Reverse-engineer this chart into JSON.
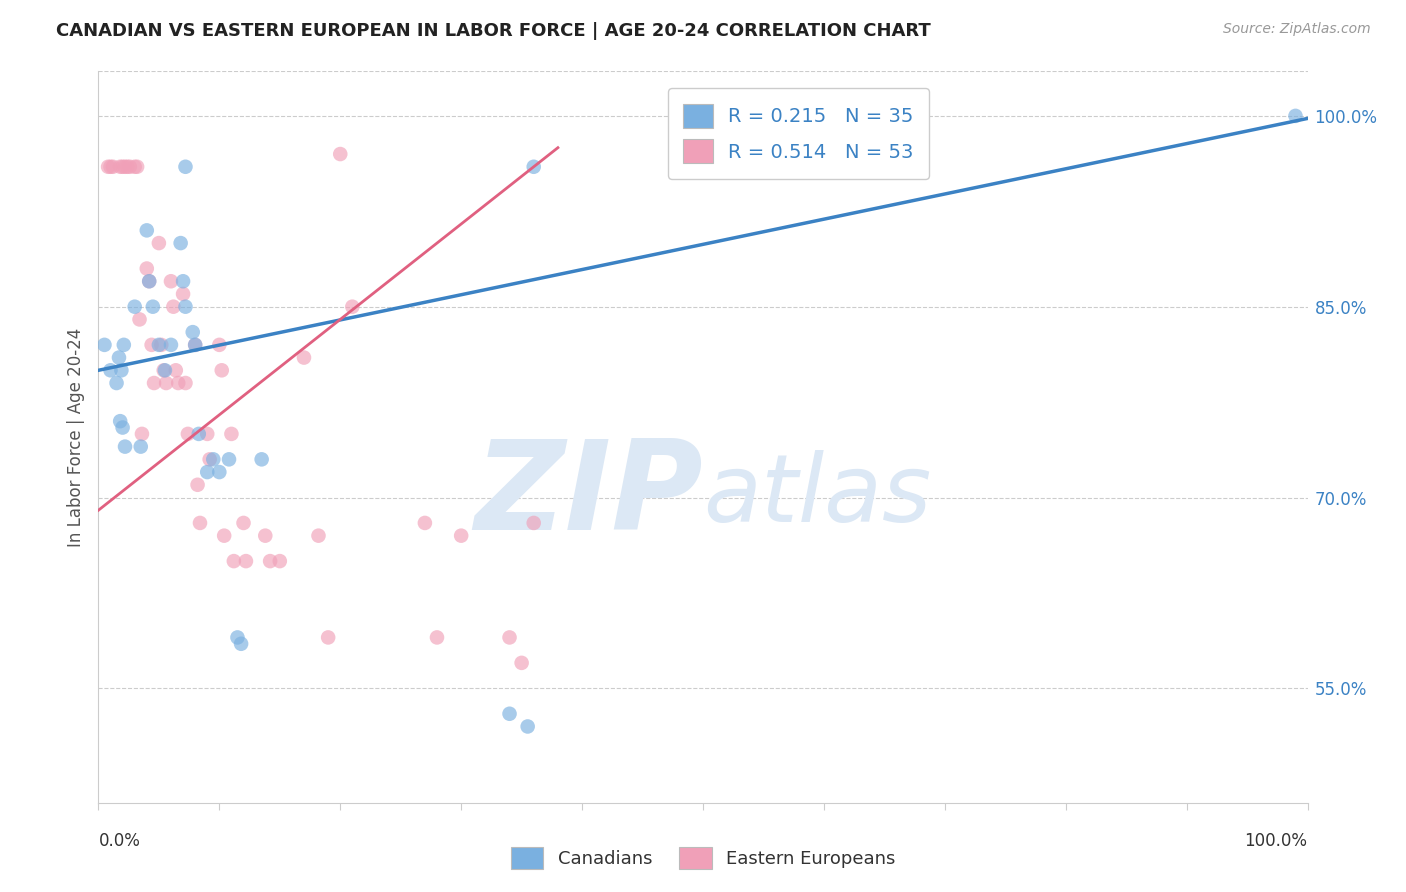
{
  "title": "CANADIAN VS EASTERN EUROPEAN IN LABOR FORCE | AGE 20-24 CORRELATION CHART",
  "source": "Source: ZipAtlas.com",
  "ylabel": "In Labor Force | Age 20-24",
  "ytick_labels": [
    "100.0%",
    "85.0%",
    "70.0%",
    "55.0%"
  ],
  "ytick_values": [
    1.0,
    0.85,
    0.7,
    0.55
  ],
  "xlim": [
    0.0,
    1.0
  ],
  "ylim": [
    0.46,
    1.035
  ],
  "color_canadian": "#7ab0e0",
  "color_eastern": "#f0a0b8",
  "color_line_canadian": "#3b82c4",
  "color_line_eastern": "#e06080",
  "watermark_zip": "ZIP",
  "watermark_atlas": "atlas",
  "watermark_color": "#dce8f5",
  "canadians_x": [
    0.005,
    0.01,
    0.015,
    0.018,
    0.02,
    0.022,
    0.03,
    0.035,
    0.04,
    0.042,
    0.045,
    0.05,
    0.055,
    0.06,
    0.068,
    0.07,
    0.072,
    0.078,
    0.08,
    0.083,
    0.09,
    0.095,
    0.1,
    0.108,
    0.115,
    0.118,
    0.135,
    0.34,
    0.355,
    0.36,
    0.017,
    0.019,
    0.021,
    0.99,
    0.072
  ],
  "canadians_y": [
    0.82,
    0.8,
    0.79,
    0.76,
    0.755,
    0.74,
    0.85,
    0.74,
    0.91,
    0.87,
    0.85,
    0.82,
    0.8,
    0.82,
    0.9,
    0.87,
    0.85,
    0.83,
    0.82,
    0.75,
    0.72,
    0.73,
    0.72,
    0.73,
    0.59,
    0.585,
    0.73,
    0.53,
    0.52,
    0.96,
    0.81,
    0.8,
    0.82,
    1.0,
    0.96
  ],
  "eastern_x": [
    0.008,
    0.01,
    0.012,
    0.018,
    0.02,
    0.022,
    0.024,
    0.026,
    0.03,
    0.032,
    0.034,
    0.036,
    0.04,
    0.042,
    0.044,
    0.046,
    0.05,
    0.052,
    0.054,
    0.056,
    0.06,
    0.062,
    0.064,
    0.066,
    0.07,
    0.072,
    0.074,
    0.08,
    0.082,
    0.084,
    0.09,
    0.092,
    0.1,
    0.102,
    0.104,
    0.11,
    0.112,
    0.12,
    0.122,
    0.138,
    0.142,
    0.15,
    0.17,
    0.182,
    0.19,
    0.2,
    0.21,
    0.27,
    0.28,
    0.34,
    0.35,
    0.36,
    0.3
  ],
  "eastern_y": [
    0.96,
    0.96,
    0.96,
    0.96,
    0.96,
    0.96,
    0.96,
    0.96,
    0.96,
    0.96,
    0.84,
    0.75,
    0.88,
    0.87,
    0.82,
    0.79,
    0.9,
    0.82,
    0.8,
    0.79,
    0.87,
    0.85,
    0.8,
    0.79,
    0.86,
    0.79,
    0.75,
    0.82,
    0.71,
    0.68,
    0.75,
    0.73,
    0.82,
    0.8,
    0.67,
    0.75,
    0.65,
    0.68,
    0.65,
    0.67,
    0.65,
    0.65,
    0.81,
    0.67,
    0.59,
    0.97,
    0.85,
    0.68,
    0.59,
    0.59,
    0.57,
    0.68,
    0.67
  ],
  "blue_line_x": [
    0.0,
    1.0
  ],
  "blue_line_y": [
    0.8,
    0.998
  ],
  "pink_line_x": [
    0.0,
    0.38
  ],
  "pink_line_y": [
    0.69,
    0.975
  ],
  "marker_size": 110,
  "marker_alpha": 0.65,
  "background_color": "#ffffff",
  "grid_color": "#cccccc"
}
